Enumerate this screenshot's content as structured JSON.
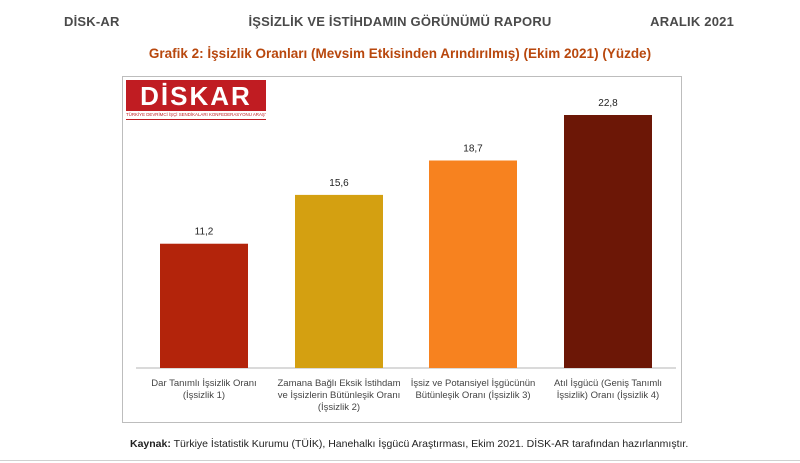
{
  "header": {
    "left": "DİSK-AR",
    "center": "İŞSİZLİK VE İSTİHDAMIN GÖRÜNÜMÜ RAPORU",
    "right": "ARALIK 2021"
  },
  "logo": {
    "text": "DİSKAR",
    "subtitle": "TÜRKİYE DEVRİMCİ İŞÇİ SENDİKALARI KONFEDERASYONU ARAŞTIRMA MERKEZİ"
  },
  "chart_data": {
    "type": "bar",
    "title": "Grafik 2: İşsizlik Oranları (Mevsim Etkisinden Arındırılmış) (Ekim 2021) (Yüzde)",
    "categories": [
      [
        "Dar Tanımlı İşsizlik Oranı",
        "(İşsizlik 1)"
      ],
      [
        "Zamana Bağlı Eksik İstihdam",
        "ve İşsizlerin Bütünleşik Oranı",
        "(İşsizlik 2)"
      ],
      [
        "İşsiz ve Potansiyel İşgücünün",
        "Bütünleşik Oranı (İşsizlik 3)"
      ],
      [
        "Atıl İşgücü (Geniş Tanımlı",
        "İşsizlik) Oranı (İşsizlik 4)"
      ]
    ],
    "values": [
      11.2,
      15.6,
      18.7,
      22.8
    ],
    "data_labels": [
      "11,2",
      "15,6",
      "18,7",
      "22,8"
    ],
    "colors": [
      "#b3240b",
      "#d4a011",
      "#f7821f",
      "#6c1706"
    ],
    "ylim": [
      0,
      25
    ],
    "grid": false,
    "legend": "none"
  },
  "source": {
    "label": "Kaynak:",
    "text": " Türkiye İstatistik Kurumu (TÜİK), Hanehalkı İşgücü Araştırması, Ekim 2021. DİSK-AR tarafından hazırlanmıştır."
  }
}
